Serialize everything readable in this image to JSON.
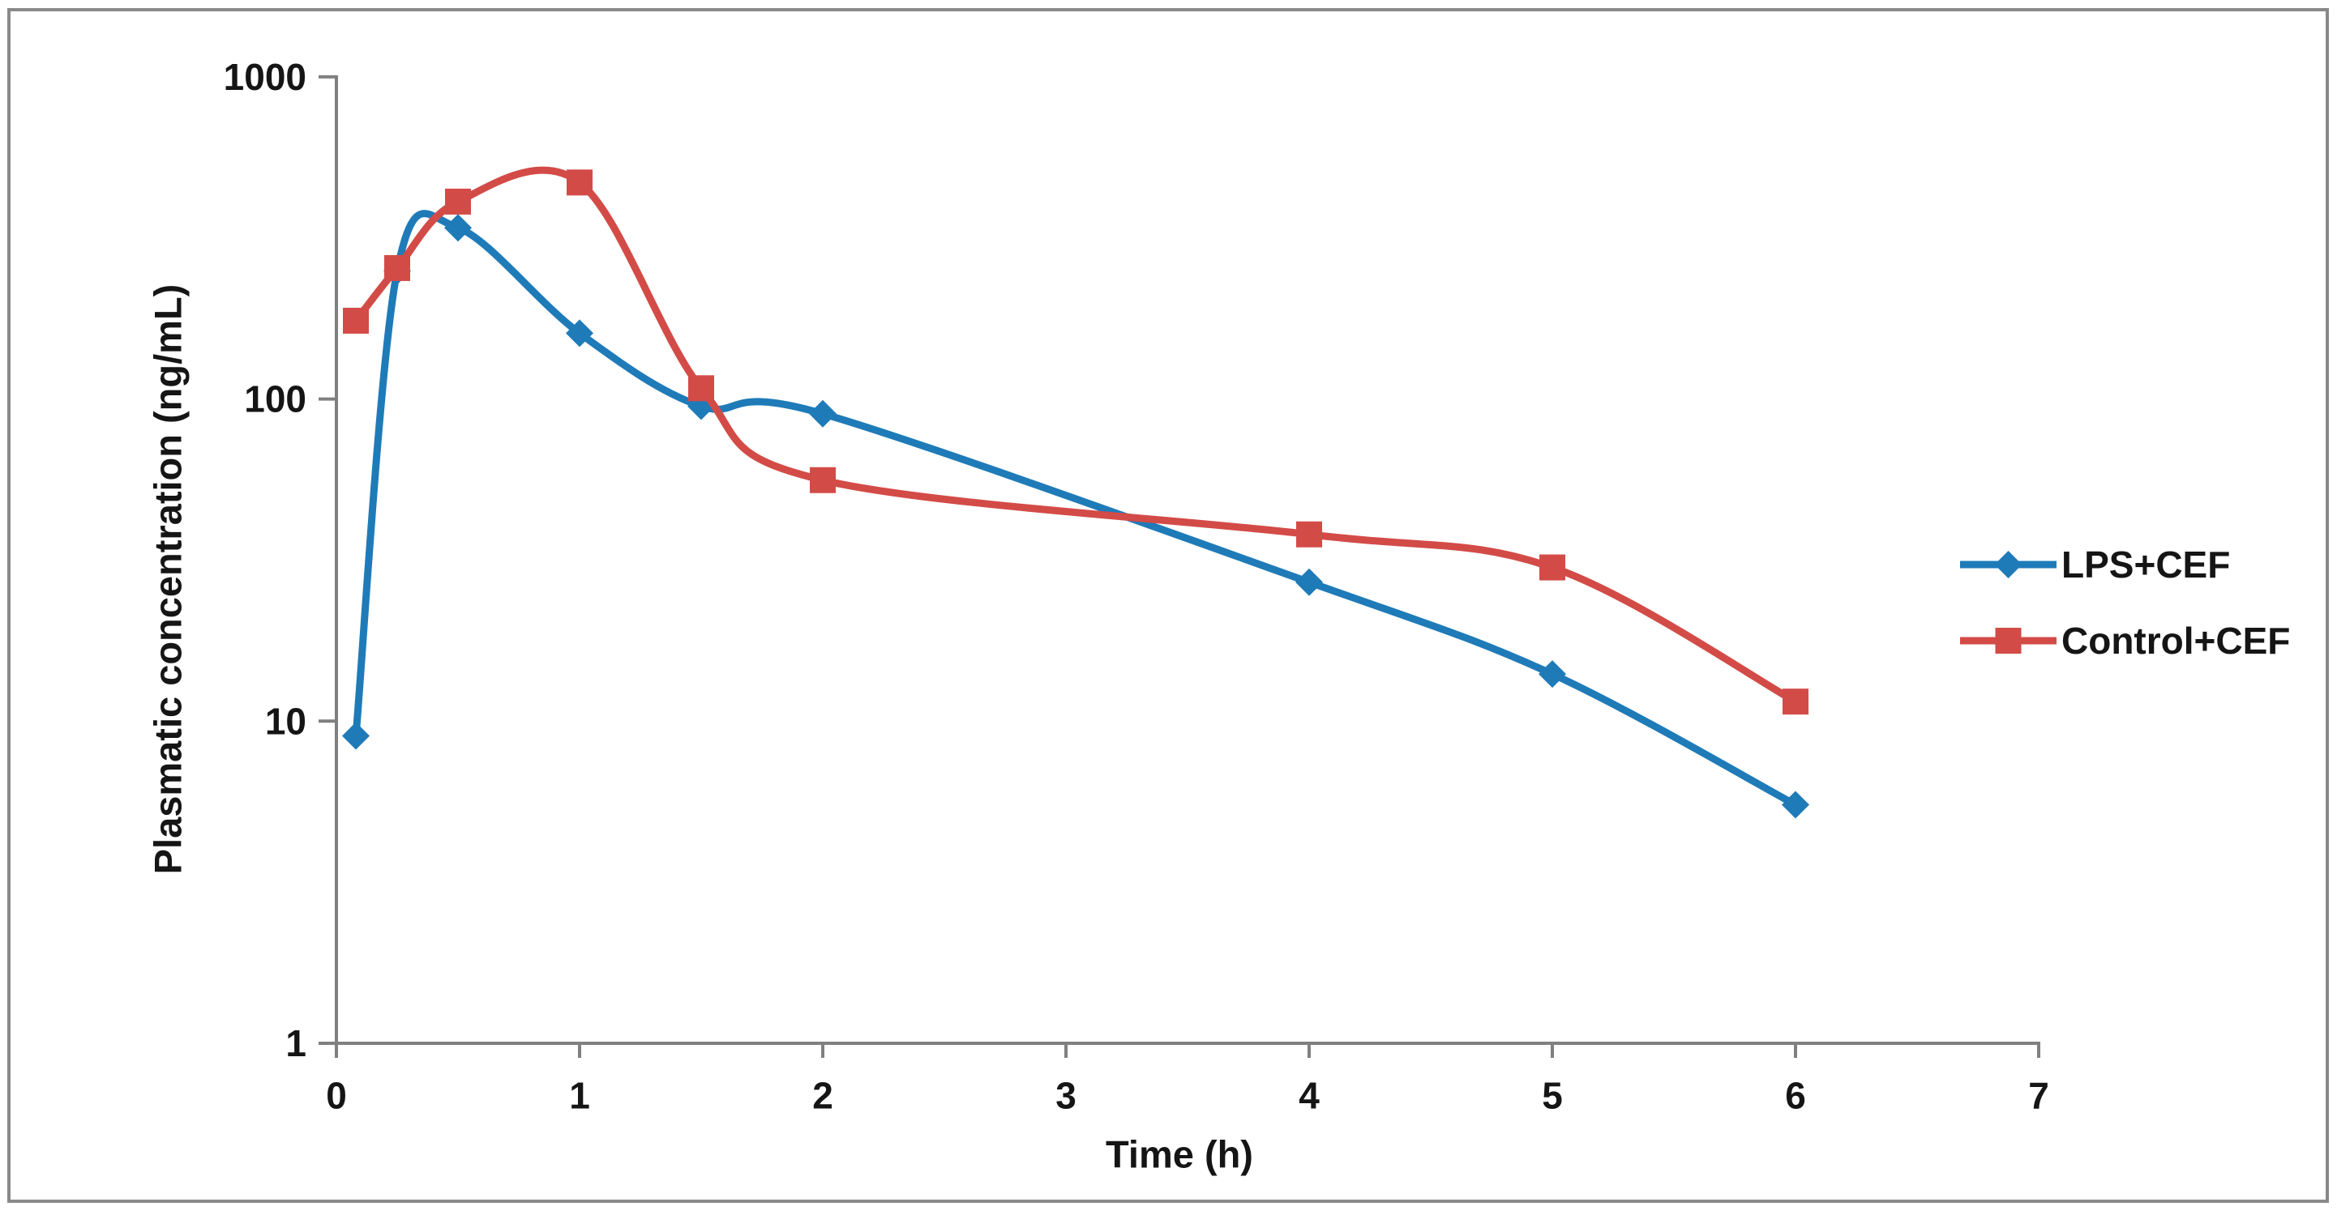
{
  "figure": {
    "background": "#ffffff",
    "border_color": "#898989",
    "axis_color": "#808080",
    "text_color": "#151515"
  },
  "chart_data": {
    "type": "line",
    "title": "",
    "xlabel": "Time (h)",
    "ylabel": "Plasmatic concentration (ng/mL)",
    "x_scale": "linear",
    "xlim": [
      0,
      7
    ],
    "x_ticks": [
      0,
      1,
      2,
      3,
      4,
      5,
      6,
      7
    ],
    "y_scale": "log10",
    "ylim": [
      1,
      1000
    ],
    "y_ticks": [
      1,
      10,
      100,
      1000
    ],
    "grid": false,
    "legend_position": "center-right",
    "series": [
      {
        "name": "LPS+CEF",
        "color": "#1F7BB8",
        "marker": "diamond",
        "smooth": true,
        "points": [
          {
            "x": 0.08,
            "y": 9
          },
          {
            "x": 0.25,
            "y": 250
          },
          {
            "x": 0.5,
            "y": 340
          },
          {
            "x": 1,
            "y": 160
          },
          {
            "x": 1.5,
            "y": 95
          },
          {
            "x": 2,
            "y": 90
          },
          {
            "x": 4,
            "y": 27
          },
          {
            "x": 5,
            "y": 14
          },
          {
            "x": 6,
            "y": 5.5
          }
        ]
      },
      {
        "name": "Control+CEF",
        "color": "#D34B47",
        "marker": "square",
        "smooth": true,
        "points": [
          {
            "x": 0.08,
            "y": 175
          },
          {
            "x": 0.25,
            "y": 255
          },
          {
            "x": 0.5,
            "y": 410
          },
          {
            "x": 1,
            "y": 470
          },
          {
            "x": 1.5,
            "y": 108
          },
          {
            "x": 2,
            "y": 56
          },
          {
            "x": 4,
            "y": 38
          },
          {
            "x": 5,
            "y": 30
          },
          {
            "x": 6,
            "y": 11.5
          }
        ]
      }
    ]
  }
}
